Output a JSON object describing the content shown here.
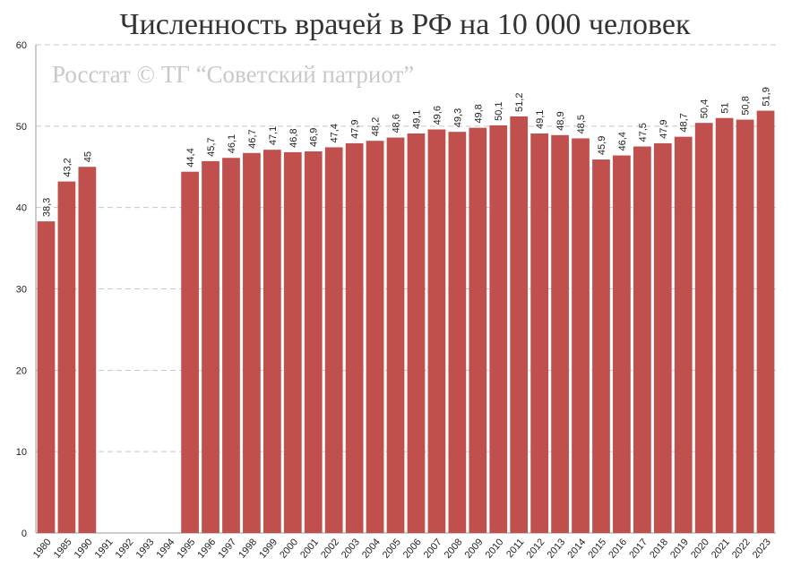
{
  "chart_data": {
    "type": "bar",
    "title": "Численность врачей в РФ на 10 000 человек",
    "annotation": "Росстат © ТГ “Советский патриот”",
    "categories": [
      "1980",
      "1985",
      "1990",
      "1991",
      "1992",
      "1993",
      "1994",
      "1995",
      "1996",
      "1997",
      "1998",
      "1999",
      "2000",
      "2001",
      "2002",
      "2003",
      "2004",
      "2005",
      "2006",
      "2007",
      "2008",
      "2009",
      "2010",
      "2011",
      "2012",
      "2013",
      "2014",
      "2015",
      "2016",
      "2017",
      "2018",
      "2019",
      "2020",
      "2021",
      "2022",
      "2023"
    ],
    "values": [
      38.3,
      43.2,
      45,
      null,
      null,
      null,
      null,
      44.4,
      45.7,
      46.1,
      46.7,
      47.1,
      46.8,
      46.9,
      47.4,
      47.9,
      48.2,
      48.6,
      49.1,
      49.6,
      49.3,
      49.8,
      50.1,
      51.2,
      49.1,
      48.9,
      48.5,
      45.9,
      46.4,
      47.5,
      47.9,
      48.7,
      50.4,
      51,
      50.8,
      51.9
    ],
    "value_labels": [
      "38,3",
      "43,2",
      "45",
      null,
      null,
      null,
      null,
      "44,4",
      "45,7",
      "46,1",
      "46,7",
      "47,1",
      "46,8",
      "46,9",
      "47,4",
      "47,9",
      "48,2",
      "48,6",
      "49,1",
      "49,6",
      "49,3",
      "49,8",
      "50,1",
      "51,2",
      "49,1",
      "48,9",
      "48,5",
      "45,9",
      "46,4",
      "47,5",
      "47,9",
      "48,7",
      "50,4",
      "51",
      "50,8",
      "51,9"
    ],
    "color": "#c0504d",
    "ylim": [
      0,
      60
    ],
    "yticks": [
      0,
      10,
      20,
      30,
      40,
      50,
      60
    ],
    "grid": true
  }
}
